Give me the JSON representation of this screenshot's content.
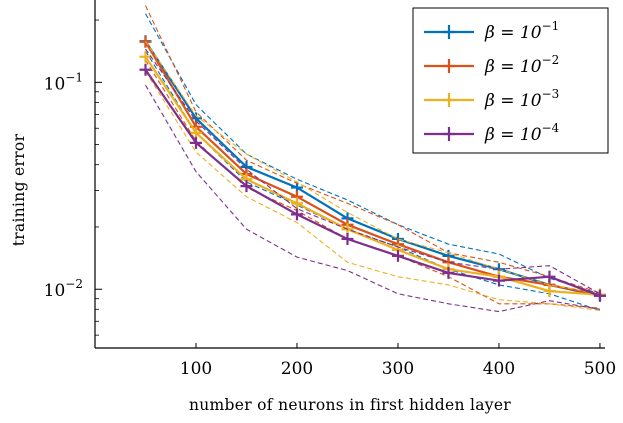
{
  "chart_data": {
    "type": "line",
    "title": "",
    "xlabel": "number of neurons in first hidden layer",
    "ylabel": "training error",
    "xscale": "linear",
    "yscale": "log",
    "xlim": [
      0,
      505
    ],
    "ylim": [
      0.0052,
      0.25
    ],
    "xticks": [
      100,
      200,
      300,
      400,
      500
    ],
    "xtick_labels": [
      "100",
      "200",
      "300",
      "400",
      "500"
    ],
    "yticks": [
      0.1,
      0.01
    ],
    "ytick_labels": [
      {
        "base": "10",
        "exp": "−1"
      },
      {
        "base": "10",
        "exp": "−2"
      }
    ],
    "legend_position": "top-right",
    "x": [
      50,
      100,
      150,
      200,
      250,
      300,
      350,
      400,
      450,
      500
    ],
    "series": [
      {
        "name": "β = 10^−1",
        "legend": {
          "label": "β = 10",
          "exp": "−1"
        },
        "color": "#0072BD",
        "mean": [
          0.158,
          0.067,
          0.039,
          0.031,
          0.022,
          0.0175,
          0.0145,
          0.0125,
          0.0105,
          0.0093
        ],
        "upper": [
          0.215,
          0.078,
          0.045,
          0.034,
          0.027,
          0.0205,
          0.0165,
          0.0148,
          0.0113,
          0.0095
        ],
        "lower": [
          0.142,
          0.057,
          0.033,
          0.0255,
          0.0195,
          0.016,
          0.0125,
          0.0105,
          0.0095,
          0.0079
        ]
      },
      {
        "name": "β = 10^−2",
        "legend": {
          "label": "β = 10",
          "exp": "−2"
        },
        "color": "#D95319",
        "mean": [
          0.157,
          0.061,
          0.036,
          0.028,
          0.0205,
          0.0165,
          0.0135,
          0.0115,
          0.0105,
          0.0094
        ],
        "upper": [
          0.235,
          0.072,
          0.042,
          0.0325,
          0.026,
          0.0205,
          0.015,
          0.0135,
          0.0115,
          0.0096
        ],
        "lower": [
          0.128,
          0.052,
          0.031,
          0.024,
          0.0175,
          0.0145,
          0.0115,
          0.0085,
          0.0085,
          0.0081
        ]
      },
      {
        "name": "β = 10^−3",
        "legend": {
          "label": "β = 10",
          "exp": "−3"
        },
        "color": "#EDB120",
        "mean": [
          0.133,
          0.057,
          0.034,
          0.026,
          0.0195,
          0.0155,
          0.0125,
          0.0115,
          0.0098,
          0.0094
        ],
        "upper": [
          0.158,
          0.069,
          0.045,
          0.033,
          0.0235,
          0.0175,
          0.015,
          0.0125,
          0.0105,
          0.0095
        ],
        "lower": [
          0.113,
          0.046,
          0.028,
          0.021,
          0.0135,
          0.0115,
          0.0105,
          0.0089,
          0.0085,
          0.0079
        ]
      },
      {
        "name": "β = 10^−4",
        "legend": {
          "label": "β = 10",
          "exp": "−4"
        },
        "color": "#7E2F8E",
        "mean": [
          0.115,
          0.051,
          0.0315,
          0.023,
          0.0175,
          0.0145,
          0.012,
          0.011,
          0.0115,
          0.0093
        ],
        "upper": [
          0.145,
          0.065,
          0.038,
          0.0245,
          0.0195,
          0.016,
          0.0135,
          0.0125,
          0.013,
          0.0095
        ],
        "lower": [
          0.097,
          0.037,
          0.0195,
          0.0143,
          0.0123,
          0.0095,
          0.0085,
          0.0078,
          0.0088,
          0.008
        ]
      }
    ]
  }
}
